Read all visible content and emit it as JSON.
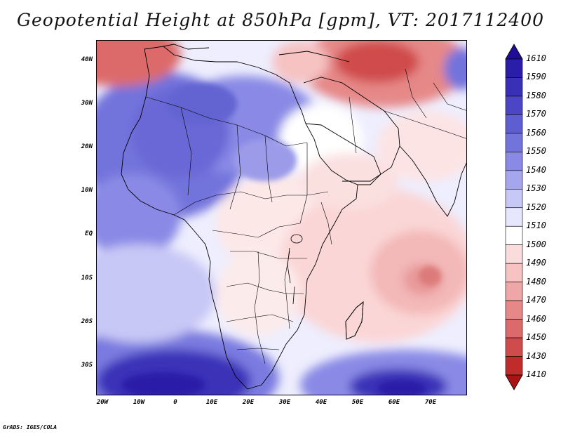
{
  "title": "Geopotential Height at 850hPa [gpm], VT: 2017112400",
  "credit": "GrADS: IGES/COLA",
  "map": {
    "region": "Africa and Middle East",
    "variable": "Geopotential Height at 850hPa",
    "units": "gpm",
    "valid_time": "2017112400",
    "lat_labels": [
      "40N",
      "30N",
      "20N",
      "10N",
      "EQ",
      "10S",
      "20S",
      "30S"
    ],
    "lon_labels": [
      "20W",
      "10W",
      "0",
      "10E",
      "20E",
      "30E",
      "40E",
      "50E",
      "60E",
      "70E"
    ]
  },
  "legend": {
    "levels": [
      "1610",
      "1590",
      "1580",
      "1570",
      "1560",
      "1550",
      "1540",
      "1530",
      "1520",
      "1510",
      "1500",
      "1490",
      "1480",
      "1470",
      "1460",
      "1450",
      "1430",
      "1410"
    ],
    "colors": [
      "#1f0c98",
      "#2a1ea8",
      "#3a30b8",
      "#4c46c6",
      "#5f5dd2",
      "#7373dc",
      "#8a8ae6",
      "#a6a6ee",
      "#c8c8f6",
      "#e6e6fc",
      "#ffffff",
      "#fbdcdc",
      "#f6c2c2",
      "#eea6a6",
      "#e68888",
      "#dc6a6a",
      "#d04c4c",
      "#c02c2c",
      "#a81414"
    ]
  }
}
